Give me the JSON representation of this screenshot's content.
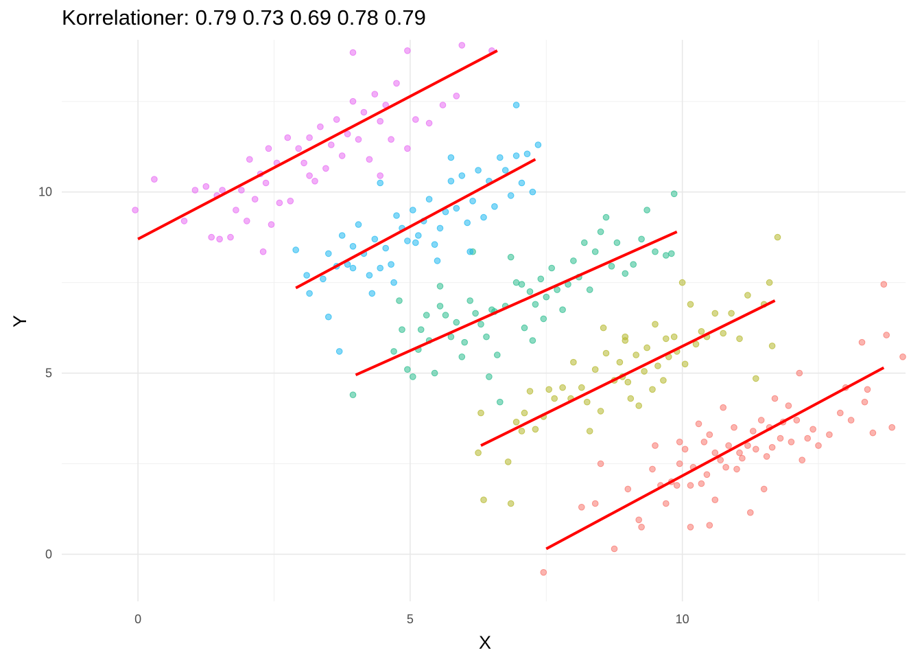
{
  "chart_data": {
    "type": "scatter",
    "title": "Korrelationer: 0.79 0.73 0.69 0.78 0.79",
    "xlabel": "X",
    "ylabel": "Y",
    "xlim": [
      -1.4,
      14.1
    ],
    "ylim": [
      -1.3,
      14.2
    ],
    "x_ticks": [
      0,
      5,
      10
    ],
    "y_ticks": [
      0,
      5,
      10
    ],
    "grid": true,
    "legend": "none",
    "fit_line_color": "#ff0000",
    "series": [
      {
        "color": "#f8766d",
        "fit": {
          "x": [
            7.5,
            13.7
          ],
          "y": [
            0.15,
            5.15
          ]
        },
        "points": [
          [
            7.45,
            -0.5
          ],
          [
            8.15,
            1.3
          ],
          [
            8.4,
            1.4
          ],
          [
            8.75,
            0.15
          ],
          [
            8.5,
            2.5
          ],
          [
            9.0,
            1.8
          ],
          [
            9.2,
            0.95
          ],
          [
            9.25,
            0.75
          ],
          [
            9.45,
            2.35
          ],
          [
            9.5,
            3.0
          ],
          [
            9.6,
            1.9
          ],
          [
            9.7,
            1.4
          ],
          [
            9.8,
            2.0
          ],
          [
            9.95,
            2.5
          ],
          [
            9.95,
            3.1
          ],
          [
            10.05,
            2.9
          ],
          [
            10.15,
            1.9
          ],
          [
            10.15,
            0.75
          ],
          [
            10.2,
            2.4
          ],
          [
            10.3,
            3.6
          ],
          [
            10.35,
            1.95
          ],
          [
            10.4,
            3.1
          ],
          [
            10.45,
            2.2
          ],
          [
            10.5,
            3.3
          ],
          [
            10.6,
            1.5
          ],
          [
            10.6,
            2.8
          ],
          [
            10.7,
            2.6
          ],
          [
            10.75,
            4.05
          ],
          [
            10.8,
            2.4
          ],
          [
            10.85,
            3.0
          ],
          [
            10.95,
            3.5
          ],
          [
            11.05,
            2.8
          ],
          [
            11.1,
            2.65
          ],
          [
            11.2,
            3.0
          ],
          [
            11.25,
            1.15
          ],
          [
            11.3,
            3.4
          ],
          [
            11.35,
            2.9
          ],
          [
            11.45,
            3.7
          ],
          [
            11.5,
            1.8
          ],
          [
            11.55,
            2.7
          ],
          [
            11.6,
            3.5
          ],
          [
            11.7,
            4.3
          ],
          [
            11.8,
            3.2
          ],
          [
            11.85,
            3.65
          ],
          [
            11.95,
            4.1
          ],
          [
            12.0,
            3.1
          ],
          [
            12.1,
            3.7
          ],
          [
            12.2,
            2.6
          ],
          [
            12.3,
            3.2
          ],
          [
            12.4,
            3.45
          ],
          [
            12.5,
            3.0
          ],
          [
            12.7,
            3.3
          ],
          [
            12.9,
            3.9
          ],
          [
            13.0,
            4.6
          ],
          [
            13.1,
            3.7
          ],
          [
            13.3,
            5.85
          ],
          [
            13.35,
            4.2
          ],
          [
            13.4,
            4.55
          ],
          [
            13.5,
            3.35
          ],
          [
            13.7,
            7.45
          ],
          [
            13.75,
            6.05
          ],
          [
            13.85,
            3.5
          ],
          [
            14.05,
            5.45
          ],
          [
            12.15,
            5.0
          ],
          [
            11.0,
            2.35
          ],
          [
            10.5,
            0.8
          ],
          [
            9.9,
            1.9
          ],
          [
            11.65,
            2.95
          ]
        ]
      },
      {
        "color": "#b5b82e",
        "fit": {
          "x": [
            6.3,
            11.7
          ],
          "y": [
            3.0,
            7.0
          ]
        },
        "points": [
          [
            6.25,
            2.8
          ],
          [
            6.3,
            3.9
          ],
          [
            6.35,
            1.5
          ],
          [
            6.8,
            2.55
          ],
          [
            6.85,
            1.4
          ],
          [
            6.95,
            3.65
          ],
          [
            7.05,
            3.4
          ],
          [
            7.1,
            3.9
          ],
          [
            7.2,
            4.5
          ],
          [
            7.3,
            3.45
          ],
          [
            7.45,
            3.8
          ],
          [
            7.55,
            4.55
          ],
          [
            7.65,
            4.3
          ],
          [
            7.8,
            4.6
          ],
          [
            7.95,
            4.3
          ],
          [
            8.0,
            5.3
          ],
          [
            8.15,
            4.6
          ],
          [
            8.25,
            4.2
          ],
          [
            8.4,
            5.1
          ],
          [
            8.5,
            3.95
          ],
          [
            8.55,
            6.25
          ],
          [
            8.6,
            5.55
          ],
          [
            8.75,
            4.8
          ],
          [
            8.85,
            5.3
          ],
          [
            8.9,
            4.9
          ],
          [
            8.95,
            6.0
          ],
          [
            9.0,
            4.75
          ],
          [
            9.05,
            4.3
          ],
          [
            9.15,
            5.5
          ],
          [
            9.2,
            4.1
          ],
          [
            9.3,
            5.05
          ],
          [
            9.35,
            5.7
          ],
          [
            9.45,
            4.55
          ],
          [
            9.5,
            6.35
          ],
          [
            9.55,
            5.2
          ],
          [
            9.65,
            4.8
          ],
          [
            9.75,
            5.45
          ],
          [
            9.85,
            6.0
          ],
          [
            9.9,
            5.6
          ],
          [
            10.0,
            7.5
          ],
          [
            10.05,
            5.25
          ],
          [
            10.15,
            6.9
          ],
          [
            10.25,
            5.8
          ],
          [
            10.35,
            6.15
          ],
          [
            10.45,
            6.0
          ],
          [
            10.6,
            6.65
          ],
          [
            10.75,
            6.1
          ],
          [
            10.9,
            6.65
          ],
          [
            11.05,
            5.95
          ],
          [
            11.2,
            7.15
          ],
          [
            11.35,
            4.85
          ],
          [
            11.5,
            6.9
          ],
          [
            11.6,
            7.5
          ],
          [
            11.75,
            8.75
          ],
          [
            11.65,
            5.75
          ],
          [
            8.95,
            5.9
          ],
          [
            9.7,
            5.95
          ],
          [
            8.3,
            3.4
          ]
        ]
      },
      {
        "color": "#2ebd8f",
        "fit": {
          "x": [
            4.0,
            9.9
          ],
          "y": [
            4.95,
            8.9
          ]
        },
        "points": [
          [
            3.95,
            4.4
          ],
          [
            4.7,
            5.6
          ],
          [
            4.8,
            7.0
          ],
          [
            4.85,
            6.2
          ],
          [
            4.95,
            5.1
          ],
          [
            5.05,
            4.9
          ],
          [
            5.15,
            5.65
          ],
          [
            5.2,
            6.2
          ],
          [
            5.3,
            6.6
          ],
          [
            5.45,
            5.0
          ],
          [
            5.55,
            6.85
          ],
          [
            5.65,
            6.6
          ],
          [
            5.75,
            6.0
          ],
          [
            5.85,
            6.4
          ],
          [
            5.95,
            5.45
          ],
          [
            6.0,
            5.85
          ],
          [
            6.1,
            7.0
          ],
          [
            6.2,
            6.65
          ],
          [
            6.3,
            6.35
          ],
          [
            6.4,
            6.0
          ],
          [
            6.45,
            4.9
          ],
          [
            6.5,
            6.75
          ],
          [
            6.6,
            5.5
          ],
          [
            6.65,
            4.2
          ],
          [
            6.75,
            6.85
          ],
          [
            6.85,
            8.2
          ],
          [
            6.95,
            7.5
          ],
          [
            7.05,
            7.45
          ],
          [
            7.1,
            6.25
          ],
          [
            7.2,
            7.25
          ],
          [
            7.3,
            6.9
          ],
          [
            7.4,
            7.6
          ],
          [
            7.45,
            6.5
          ],
          [
            7.5,
            7.1
          ],
          [
            7.6,
            7.9
          ],
          [
            7.7,
            7.3
          ],
          [
            7.8,
            6.75
          ],
          [
            7.9,
            7.45
          ],
          [
            8.0,
            8.1
          ],
          [
            8.1,
            7.65
          ],
          [
            8.2,
            8.6
          ],
          [
            8.3,
            7.3
          ],
          [
            8.4,
            8.35
          ],
          [
            8.5,
            8.9
          ],
          [
            8.6,
            9.3
          ],
          [
            8.7,
            7.95
          ],
          [
            8.8,
            8.6
          ],
          [
            8.95,
            7.75
          ],
          [
            9.1,
            8.0
          ],
          [
            9.25,
            8.7
          ],
          [
            9.35,
            9.5
          ],
          [
            9.5,
            8.35
          ],
          [
            9.7,
            8.25
          ],
          [
            9.8,
            8.3
          ],
          [
            9.85,
            9.95
          ],
          [
            6.15,
            8.35
          ],
          [
            5.55,
            7.4
          ],
          [
            7.25,
            5.9
          ],
          [
            5.35,
            5.9
          ],
          [
            6.55,
            6.7
          ]
        ]
      },
      {
        "color": "#1fb8f0",
        "fit": {
          "x": [
            2.9,
            7.3
          ],
          "y": [
            7.35,
            10.9
          ]
        },
        "points": [
          [
            2.9,
            8.4
          ],
          [
            3.1,
            7.7
          ],
          [
            3.15,
            7.2
          ],
          [
            3.4,
            7.6
          ],
          [
            3.5,
            8.3
          ],
          [
            3.5,
            6.55
          ],
          [
            3.65,
            7.95
          ],
          [
            3.7,
            5.6
          ],
          [
            3.75,
            8.8
          ],
          [
            3.85,
            8.0
          ],
          [
            3.95,
            8.5
          ],
          [
            4.05,
            9.1
          ],
          [
            4.15,
            8.3
          ],
          [
            4.25,
            7.7
          ],
          [
            4.35,
            8.7
          ],
          [
            4.45,
            7.9
          ],
          [
            4.55,
            8.45
          ],
          [
            4.65,
            8.0
          ],
          [
            4.75,
            9.35
          ],
          [
            4.85,
            9.0
          ],
          [
            4.95,
            8.65
          ],
          [
            5.05,
            9.5
          ],
          [
            5.15,
            8.8
          ],
          [
            5.25,
            9.2
          ],
          [
            5.35,
            9.8
          ],
          [
            5.45,
            8.55
          ],
          [
            5.55,
            9.0
          ],
          [
            5.65,
            9.45
          ],
          [
            5.75,
            10.3
          ],
          [
            5.85,
            9.55
          ],
          [
            5.95,
            10.45
          ],
          [
            6.05,
            9.15
          ],
          [
            6.15,
            9.75
          ],
          [
            6.25,
            10.6
          ],
          [
            6.35,
            9.3
          ],
          [
            6.45,
            10.3
          ],
          [
            6.55,
            9.6
          ],
          [
            6.65,
            10.95
          ],
          [
            6.75,
            10.6
          ],
          [
            6.85,
            9.9
          ],
          [
            6.95,
            11.0
          ],
          [
            7.05,
            10.25
          ],
          [
            7.15,
            11.05
          ],
          [
            7.25,
            10.0
          ],
          [
            7.35,
            11.3
          ],
          [
            6.95,
            12.4
          ],
          [
            6.1,
            8.35
          ],
          [
            5.5,
            8.1
          ],
          [
            4.3,
            7.2
          ],
          [
            4.7,
            7.5
          ],
          [
            5.75,
            10.95
          ],
          [
            4.45,
            10.25
          ],
          [
            3.95,
            7.9
          ],
          [
            5.1,
            8.6
          ]
        ]
      },
      {
        "color": "#e76bf3",
        "fit": {
          "x": [
            0.0,
            6.6
          ],
          "y": [
            8.7,
            13.9
          ]
        },
        "points": [
          [
            -0.05,
            9.5
          ],
          [
            0.3,
            10.35
          ],
          [
            0.85,
            9.2
          ],
          [
            1.05,
            10.05
          ],
          [
            1.25,
            10.15
          ],
          [
            1.35,
            8.75
          ],
          [
            1.45,
            9.9
          ],
          [
            1.55,
            10.05
          ],
          [
            1.7,
            8.75
          ],
          [
            1.8,
            9.5
          ],
          [
            1.9,
            10.05
          ],
          [
            2.0,
            9.2
          ],
          [
            2.05,
            10.9
          ],
          [
            2.15,
            9.8
          ],
          [
            2.25,
            10.5
          ],
          [
            2.35,
            10.25
          ],
          [
            2.4,
            11.2
          ],
          [
            2.45,
            9.1
          ],
          [
            2.55,
            10.8
          ],
          [
            2.6,
            9.7
          ],
          [
            2.75,
            11.5
          ],
          [
            2.8,
            9.75
          ],
          [
            2.95,
            11.2
          ],
          [
            3.05,
            10.8
          ],
          [
            3.15,
            11.5
          ],
          [
            3.25,
            10.3
          ],
          [
            3.35,
            11.8
          ],
          [
            3.45,
            10.65
          ],
          [
            3.55,
            11.3
          ],
          [
            3.65,
            12.0
          ],
          [
            3.75,
            11.0
          ],
          [
            3.85,
            11.6
          ],
          [
            3.95,
            12.5
          ],
          [
            4.05,
            11.45
          ],
          [
            4.15,
            12.2
          ],
          [
            4.25,
            10.9
          ],
          [
            4.35,
            12.7
          ],
          [
            4.45,
            11.95
          ],
          [
            4.55,
            12.4
          ],
          [
            4.65,
            11.45
          ],
          [
            4.75,
            13.0
          ],
          [
            4.95,
            11.2
          ],
          [
            5.1,
            12.0
          ],
          [
            5.35,
            11.9
          ],
          [
            5.6,
            12.4
          ],
          [
            5.85,
            12.65
          ],
          [
            5.95,
            14.05
          ],
          [
            6.5,
            13.9
          ],
          [
            3.95,
            13.85
          ],
          [
            4.95,
            13.9
          ],
          [
            4.45,
            10.45
          ],
          [
            2.3,
            8.35
          ],
          [
            1.5,
            8.7
          ],
          [
            3.15,
            10.45
          ]
        ]
      }
    ]
  }
}
